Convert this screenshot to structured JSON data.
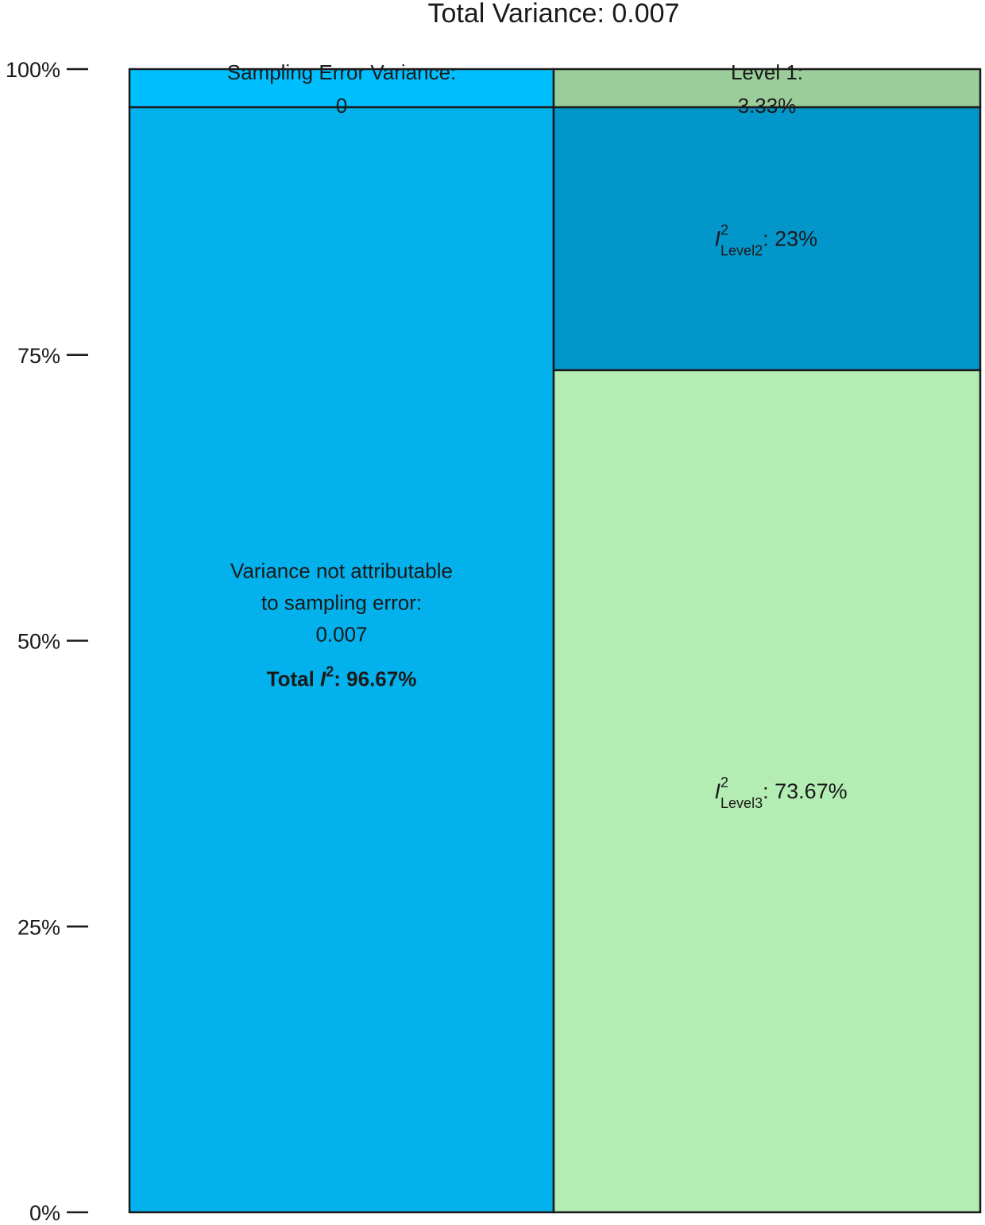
{
  "chart_data": {
    "type": "stacked-bar",
    "title": "Total Variance: 0.007",
    "y_ticks": [
      "0%",
      "25%",
      "50%",
      "75%",
      "100%"
    ],
    "ylim": [
      0,
      100
    ],
    "grid": false,
    "legend": "none",
    "columns": [
      {
        "segments": [
          {
            "value": 96.67,
            "color": "#03B1EC",
            "text_lines": [
              "Variance not attributable",
              "to sampling error:",
              "0.007"
            ],
            "bold_prefix": "Total ",
            "bold_symbol": "I",
            "bold_sup": "2",
            "bold_suffix": ": 96.67%"
          },
          {
            "value": 3.33,
            "color": "#00BFFF",
            "text_lines": [
              "Sampling Error Variance:",
              "0"
            ]
          }
        ]
      },
      {
        "segments": [
          {
            "value": 73.67,
            "color": "#B3EDB3",
            "symbol": "I",
            "sup": "2",
            "sub": "Level3",
            "suffix": ": 73.67%"
          },
          {
            "value": 23,
            "color": "#0296CB",
            "symbol": "I",
            "sup": "2",
            "sub": "Level2",
            "suffix": ": 23%"
          },
          {
            "value": 3.33,
            "color": "#9BCD9B",
            "text_lines": [
              "Level 1:",
              "3.33%"
            ]
          }
        ]
      }
    ]
  }
}
